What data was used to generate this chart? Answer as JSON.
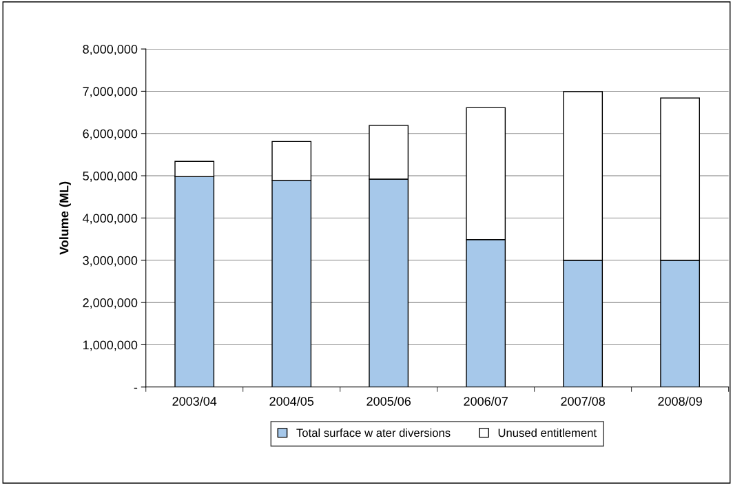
{
  "chart_data": {
    "type": "bar",
    "stacked": true,
    "ylabel": "Volume (ML)",
    "categories": [
      "2003/04",
      "2004/05",
      "2005/06",
      "2006/07",
      "2007/08",
      "2008/09"
    ],
    "series": [
      {
        "name": "Total surface w ater diversions",
        "color": "#a6c8ea",
        "values": [
          4980000,
          4890000,
          4920000,
          3490000,
          3000000,
          3000000
        ]
      },
      {
        "name": "Unused entitlement",
        "color": "#ffffff",
        "values": [
          360000,
          920000,
          1270000,
          3120000,
          3990000,
          3840000
        ]
      }
    ],
    "ylim": [
      0,
      8000000
    ],
    "yticks": [
      {
        "value": 0,
        "label": "-"
      },
      {
        "value": 1000000,
        "label": "1,000,000"
      },
      {
        "value": 2000000,
        "label": "2,000,000"
      },
      {
        "value": 3000000,
        "label": "3,000,000"
      },
      {
        "value": 4000000,
        "label": "4,000,000"
      },
      {
        "value": 5000000,
        "label": "5,000,000"
      },
      {
        "value": 6000000,
        "label": "6,000,000"
      },
      {
        "value": 7000000,
        "label": "7,000,000"
      },
      {
        "value": 8000000,
        "label": "8,000,000"
      }
    ],
    "grid": "y",
    "legend": "bottom"
  }
}
